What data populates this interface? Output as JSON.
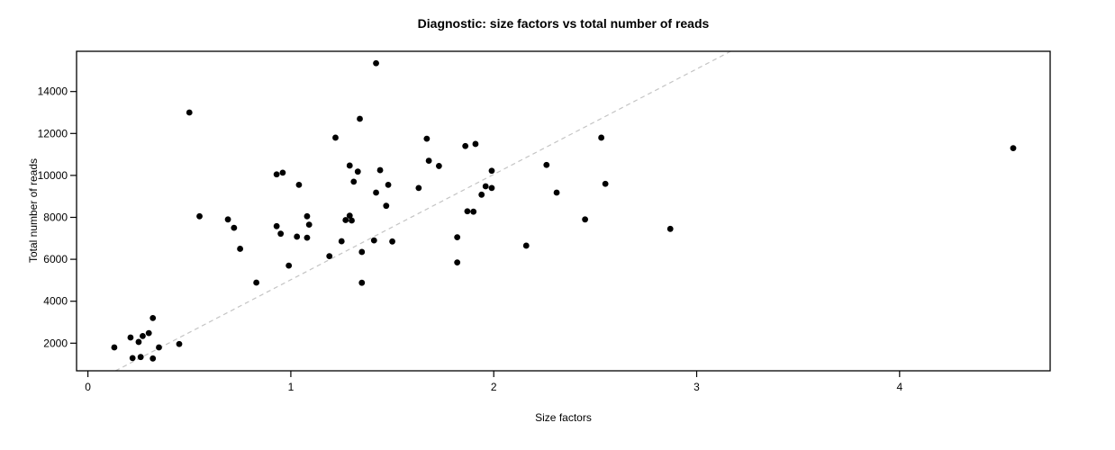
{
  "chart_data": {
    "type": "scatter",
    "title": "Diagnostic: size factors vs total number of reads",
    "xlabel": "Size factors",
    "ylabel": "Total number of reads",
    "xlim": [
      -0.056,
      4.742
    ],
    "ylim": [
      683,
      15918
    ],
    "x_ticks": [
      0,
      1,
      2,
      3,
      4
    ],
    "y_ticks": [
      2000,
      4000,
      6000,
      8000,
      10000,
      12000,
      14000
    ],
    "grid": false,
    "legend": null,
    "point_color": "#000000",
    "point_radius_px": 3.4,
    "box_color": "#000000",
    "reference_line": {
      "style": "dashed",
      "color": "#c4c4c4",
      "slope": 5025,
      "intercept": 0
    },
    "points": [
      [
        0.13,
        1800
      ],
      [
        0.21,
        2270
      ],
      [
        0.25,
        2060
      ],
      [
        0.27,
        2340
      ],
      [
        0.3,
        2480
      ],
      [
        0.32,
        3200
      ],
      [
        0.35,
        1800
      ],
      [
        0.45,
        1960
      ],
      [
        0.22,
        1290
      ],
      [
        0.26,
        1340
      ],
      [
        0.32,
        1270
      ],
      [
        0.5,
        13000
      ],
      [
        0.55,
        8050
      ],
      [
        0.69,
        7900
      ],
      [
        0.72,
        7500
      ],
      [
        0.75,
        6500
      ],
      [
        0.83,
        4890
      ],
      [
        0.93,
        10050
      ],
      [
        0.96,
        10130
      ],
      [
        1.04,
        9550
      ],
      [
        0.93,
        7580
      ],
      [
        0.95,
        7220
      ],
      [
        0.99,
        5700
      ],
      [
        1.03,
        7080
      ],
      [
        1.08,
        8050
      ],
      [
        1.09,
        7650
      ],
      [
        1.08,
        7030
      ],
      [
        1.19,
        6150
      ],
      [
        1.25,
        6860
      ],
      [
        1.22,
        11800
      ],
      [
        1.27,
        7870
      ],
      [
        1.29,
        8080
      ],
      [
        1.3,
        7850
      ],
      [
        1.29,
        10470
      ],
      [
        1.31,
        9700
      ],
      [
        1.34,
        12700
      ],
      [
        1.33,
        10180
      ],
      [
        1.35,
        6350
      ],
      [
        1.35,
        4880
      ],
      [
        1.41,
        6900
      ],
      [
        1.42,
        15350
      ],
      [
        1.42,
        9180
      ],
      [
        1.44,
        10250
      ],
      [
        1.47,
        8550
      ],
      [
        1.48,
        9550
      ],
      [
        1.5,
        6850
      ],
      [
        1.63,
        9400
      ],
      [
        1.67,
        11750
      ],
      [
        1.68,
        10700
      ],
      [
        1.73,
        10450
      ],
      [
        1.82,
        7050
      ],
      [
        1.82,
        5850
      ],
      [
        1.86,
        11400
      ],
      [
        1.87,
        8290
      ],
      [
        1.9,
        8270
      ],
      [
        1.91,
        11500
      ],
      [
        1.94,
        9080
      ],
      [
        1.96,
        9480
      ],
      [
        1.99,
        10220
      ],
      [
        1.99,
        9400
      ],
      [
        2.16,
        6650
      ],
      [
        2.26,
        10500
      ],
      [
        2.31,
        9180
      ],
      [
        2.45,
        7900
      ],
      [
        2.53,
        11800
      ],
      [
        2.55,
        9600
      ],
      [
        2.87,
        7450
      ],
      [
        4.56,
        11300
      ]
    ]
  }
}
